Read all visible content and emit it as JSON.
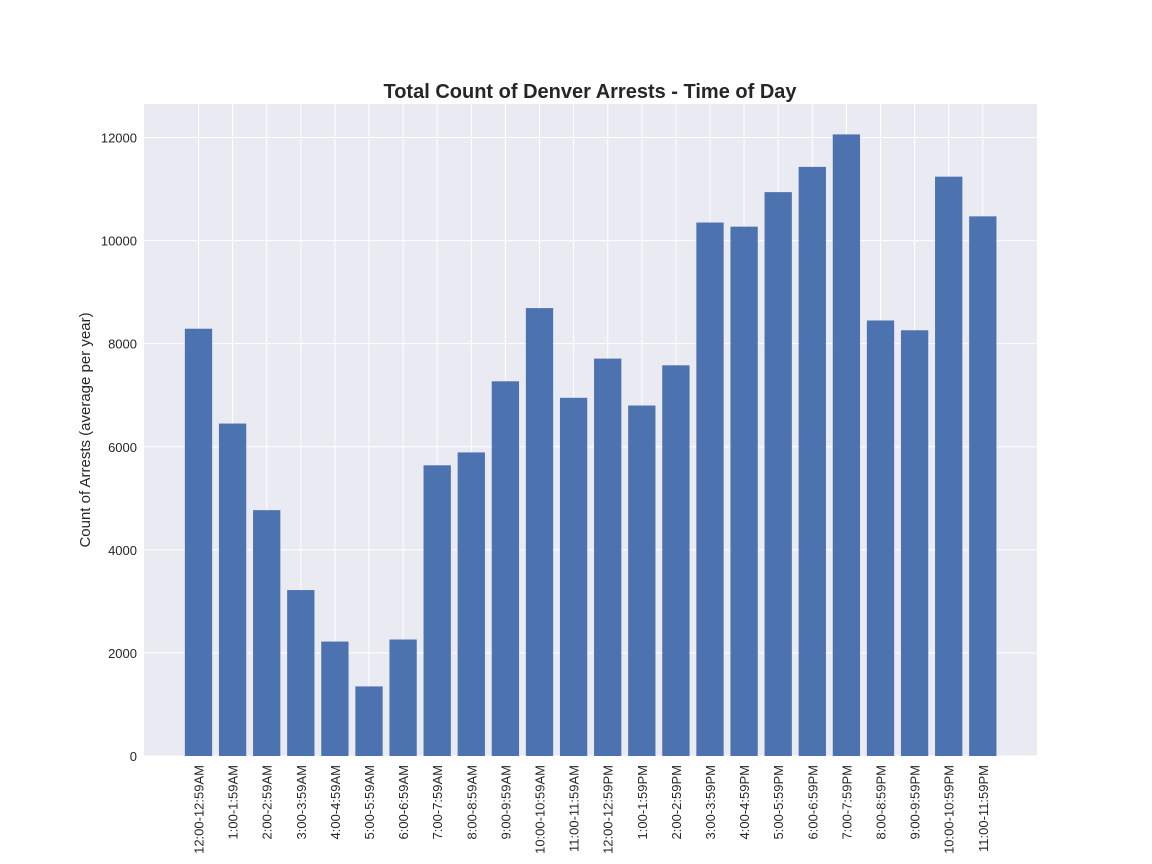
{
  "chart_data": {
    "type": "bar",
    "title": "Total Count of Denver Arrests - Time of Day",
    "xlabel": "",
    "ylabel": "Count of Arrests (average per year)",
    "ylim": [
      0,
      12650
    ],
    "yticks": [
      0,
      2000,
      4000,
      6000,
      8000,
      10000,
      12000
    ],
    "grid": true,
    "bar_color": "#4c72b0",
    "background_color": "#eaeaf2",
    "categories": [
      "12:00-12:59AM",
      "1:00-1:59AM",
      "2:00-2:59AM",
      "3:00-3:59AM",
      "4:00-4:59AM",
      "5:00-5:59AM",
      "6:00-6:59AM",
      "7:00-7:59AM",
      "8:00-8:59AM",
      "9:00-9:59AM",
      "10:00-10:59AM",
      "11:00-11:59AM",
      "12:00-12:59PM",
      "1:00-1:59PM",
      "2:00-2:59PM",
      "3:00-3:59PM",
      "4:00-4:59PM",
      "5:00-5:59PM",
      "6:00-6:59PM",
      "7:00-7:59PM",
      "8:00-8:59PM",
      "9:00-9:59PM",
      "10:00-10:59PM",
      "11:00-11:59PM"
    ],
    "values": [
      8290,
      6450,
      4770,
      3220,
      2220,
      1350,
      2260,
      5640,
      5890,
      7270,
      8690,
      6950,
      7710,
      6800,
      7580,
      10350,
      10270,
      10940,
      11430,
      12060,
      8450,
      8260,
      11240,
      10470
    ]
  }
}
